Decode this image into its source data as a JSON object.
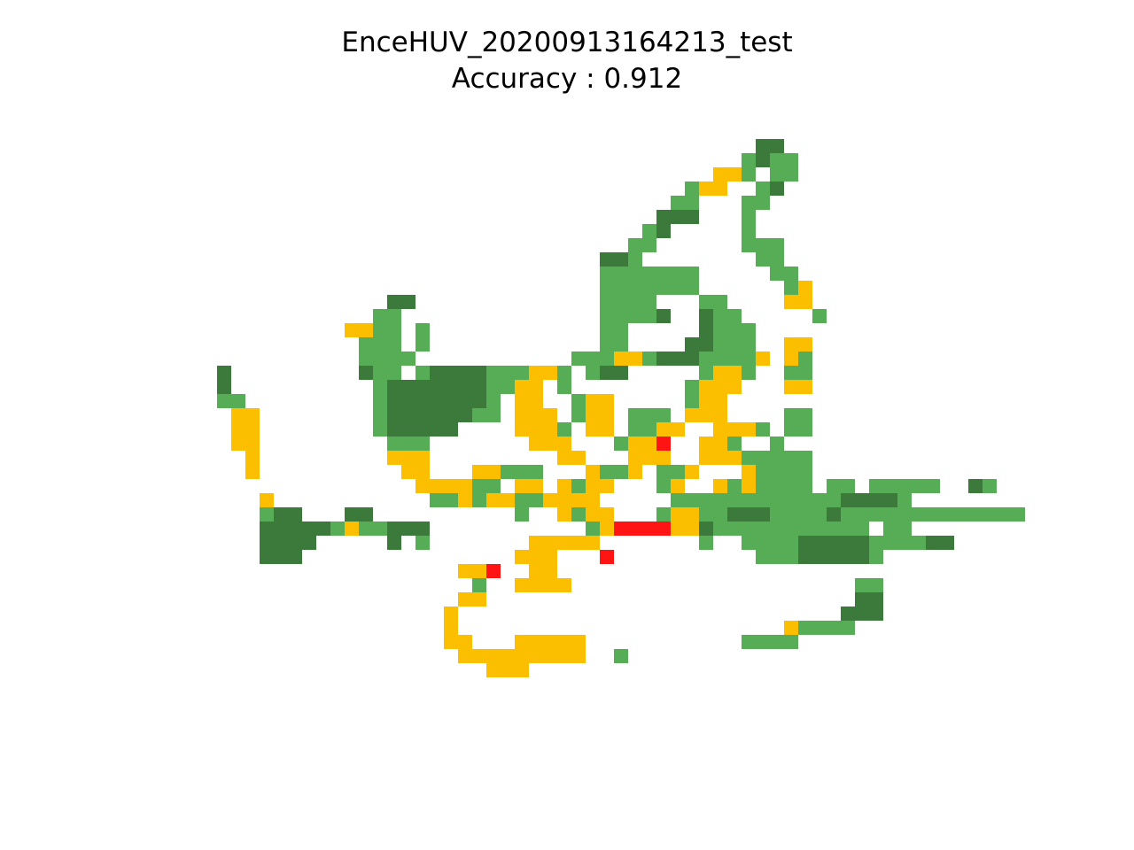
{
  "chart_data": {
    "type": "heatmap",
    "title": "EnceHUV_20200913164213_test",
    "subtitle": "Accuracy : 0.912",
    "xlabel": "",
    "ylabel": "",
    "grid": false,
    "axes_visible": false,
    "colors": {
      "correct_dark": "#3b7a3b",
      "correct_light": "#56ad56",
      "warning": "#fcbf00",
      "error": "#ff1414"
    },
    "legend": {
      "D": "correct_dark",
      "G": "correct_light",
      "Y": "warning",
      "R": "error",
      ".": "empty"
    },
    "rows": [
      "......................................DD..",
      ".....................................GDGG.",
      "...................................YYG.GG.",
      ".................................GYY..GD..",
      "................................GG...GG...",
      "...............................DDD...G....",
      "..............................GD.....G....",
      ".............................GG......GGG..",
      "...........................DDG........GG..",
      "...........................GGGGGGG.....GG.",
      "...........................GGGGGGG......GY",
      "............DD.............GGGG...GG....YY",
      "...........GG..............GGGGD..DGG.....G",
      ".........YYGG.G............GG.....DGGG....",
      "..........GGG.G............GG....DDGGG..YY",
      "..........GGGG...........GGGYYGDDDGGGGY.YG",
      "D.........DGG.GDDDDGGGYYG.GDD.....GYYG..GG",
      "D..........GDDDDDDDGGYY.G........GYYY...YY",
      "GG.........GDDDDDDDG.YY..GYY.....GYY......",
      ".YY........GDDDDDDGG.YYY.GYY.GGG.YYY....GG",
      ".YY........GDDDDD....YYYG.YY.GGYY..YYYG.GG",
      ".YY.........GGG.......YYY...GYYR..YYG..G",
      "..Y.........YYY.........YY...YYY..YYYGGGGG",
      "..Y..........YY...YYGGG...YGGY.GGY...YGGGG",
      "..............YYYYGG.YY.YGYY...GY..YGYGGGG.GG.GGGGG..DG",
      "...Y...........GGYGYYGGYYYY.....GGGGGGGGGGGGDDDDG",
      "...GDD...DD..........G..YGYY...GYYGGDDDGGGGDGGGGGGGGGGGGG",
      "...DDDDDGYGGDDD...........GYRRRRYYDGGGGGGGGGGG.GG",
      "...DDDD.....D.G.......YYYYY.......G..GGGGDDDDDGGGGDD",
      "...DDD...............YYY...R..........GGGDDDDDG",
      ".................YYR..YY........................",
      "..................G..YYYY....................GG",
      ".................YY..........................DD",
      "................Y...........................DDD",
      "................Y.......................YGGGG",
      "................YY...YYYYY...........GGGG",
      ".................YYYYYYYYY..G",
      "...................YYY"
    ]
  }
}
